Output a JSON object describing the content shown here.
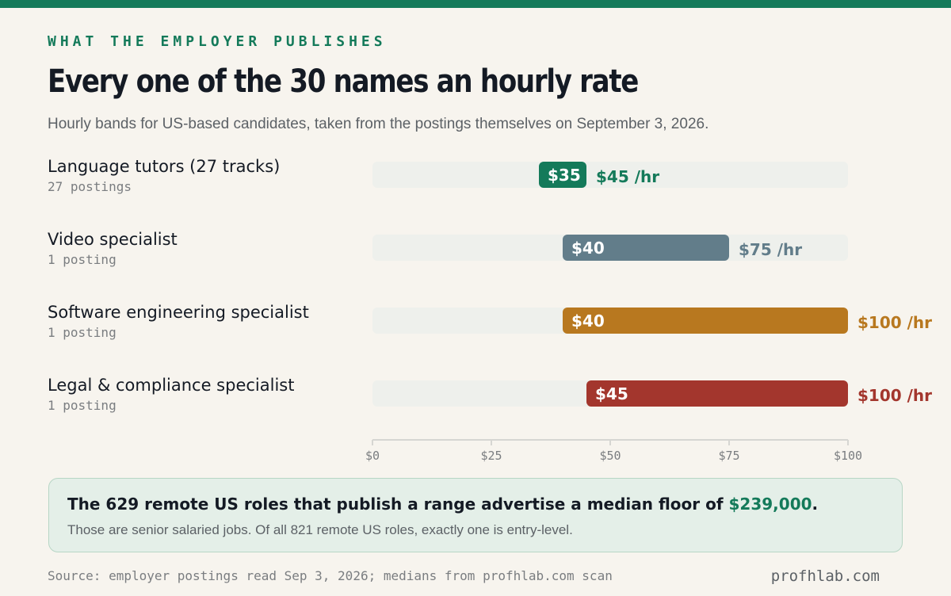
{
  "eyebrow": "WHAT THE EMPLOYER PUBLISHES",
  "title": "Every one of the 30 names an hourly rate",
  "subtitle": "Hourly bands for US-based candidates, taken from the postings themselves on September 3, 2026.",
  "chart_data": {
    "type": "bar",
    "orientation": "horizontal-range",
    "xlim": [
      0,
      100
    ],
    "x_ticks": [
      "$0",
      "$25",
      "$50",
      "$75",
      "$100"
    ],
    "x_tick_values": [
      0,
      25,
      50,
      75,
      100
    ],
    "unit_suffix": " /hr",
    "rows": [
      {
        "label": "Language tutors (27 tracks)",
        "sub": "27 postings",
        "low": 35,
        "high": 45,
        "low_label": "$35",
        "high_label": "$45 /hr",
        "color": "#147a5a"
      },
      {
        "label": "Video specialist",
        "sub": "1 posting",
        "low": 40,
        "high": 75,
        "low_label": "$40",
        "high_label": "$75 /hr",
        "color": "#627d8a"
      },
      {
        "label": "Software engineering specialist",
        "sub": "1 posting",
        "low": 40,
        "high": 100,
        "low_label": "$40",
        "high_label": "$100 /hr",
        "color": "#b8781f"
      },
      {
        "label": "Legal & compliance specialist",
        "sub": "1 posting",
        "low": 45,
        "high": 100,
        "low_label": "$45",
        "high_label": "$100 /hr",
        "color": "#a3362d"
      }
    ]
  },
  "callout": {
    "head_pre": "The 629 remote US roles that publish a range advertise a median floor of ",
    "head_value": "$239,000",
    "head_post": ".",
    "sub": "Those are senior salaried jobs. Of all 821 remote US roles, exactly one is entry-level."
  },
  "source": "Source: employer postings read Sep 3, 2026; medians from profhlab.com scan",
  "brand": "profhlab.com",
  "colors": {
    "accent": "#147a5a",
    "track": "#eef0ec",
    "axis": "#d6d6d2",
    "tick_text": "#7a7d80"
  }
}
